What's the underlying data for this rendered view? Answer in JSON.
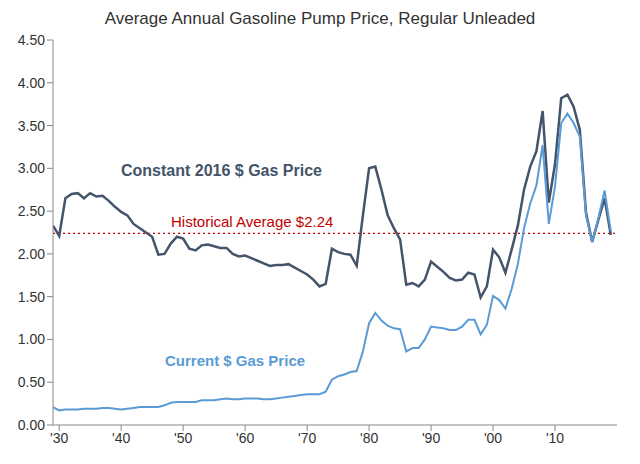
{
  "chart_data": {
    "type": "line",
    "title": "Average Annual Gasoline Pump Price, Regular Unleaded",
    "x": [
      1929,
      1930,
      1931,
      1932,
      1933,
      1934,
      1935,
      1936,
      1937,
      1938,
      1939,
      1940,
      1941,
      1942,
      1943,
      1944,
      1945,
      1946,
      1947,
      1948,
      1949,
      1950,
      1951,
      1952,
      1953,
      1954,
      1955,
      1956,
      1957,
      1958,
      1959,
      1960,
      1961,
      1962,
      1963,
      1964,
      1965,
      1966,
      1967,
      1968,
      1969,
      1970,
      1971,
      1972,
      1973,
      1974,
      1975,
      1976,
      1977,
      1978,
      1979,
      1980,
      1981,
      1982,
      1983,
      1984,
      1985,
      1986,
      1987,
      1988,
      1989,
      1990,
      1991,
      1992,
      1993,
      1994,
      1995,
      1996,
      1997,
      1998,
      1999,
      2000,
      2001,
      2002,
      2003,
      2004,
      2005,
      2006,
      2007,
      2008,
      2009,
      2010,
      2011,
      2012,
      2013,
      2014,
      2015,
      2016,
      2017,
      2018,
      2019
    ],
    "series": [
      {
        "name": "Constant 2016 $ Gas Price",
        "color": "#44546a",
        "values": [
          2.33,
          2.21,
          2.65,
          2.7,
          2.71,
          2.65,
          2.71,
          2.67,
          2.68,
          2.62,
          2.55,
          2.49,
          2.45,
          2.35,
          2.3,
          2.25,
          2.2,
          1.99,
          2.0,
          2.12,
          2.2,
          2.18,
          2.06,
          2.04,
          2.1,
          2.11,
          2.09,
          2.07,
          2.07,
          2.0,
          1.97,
          1.98,
          1.95,
          1.92,
          1.89,
          1.86,
          1.87,
          1.87,
          1.88,
          1.84,
          1.8,
          1.76,
          1.7,
          1.62,
          1.65,
          2.06,
          2.02,
          2.0,
          1.99,
          1.86,
          2.45,
          3.0,
          3.02,
          2.75,
          2.45,
          2.3,
          2.17,
          1.64,
          1.66,
          1.62,
          1.7,
          1.91,
          1.85,
          1.79,
          1.72,
          1.69,
          1.7,
          1.78,
          1.76,
          1.49,
          1.62,
          2.05,
          1.96,
          1.78,
          2.05,
          2.33,
          2.75,
          3.02,
          3.2,
          3.67,
          2.6,
          3.05,
          3.82,
          3.86,
          3.72,
          3.45,
          2.48,
          2.14,
          2.4,
          2.65,
          2.22
        ]
      },
      {
        "name": "Current $ Gas Price",
        "color": "#5b9bd5",
        "values": [
          0.21,
          0.17,
          0.18,
          0.18,
          0.18,
          0.19,
          0.19,
          0.19,
          0.2,
          0.2,
          0.19,
          0.18,
          0.19,
          0.2,
          0.21,
          0.21,
          0.21,
          0.21,
          0.23,
          0.26,
          0.27,
          0.27,
          0.27,
          0.27,
          0.29,
          0.29,
          0.29,
          0.3,
          0.31,
          0.3,
          0.3,
          0.31,
          0.31,
          0.31,
          0.3,
          0.3,
          0.31,
          0.32,
          0.33,
          0.34,
          0.35,
          0.36,
          0.36,
          0.36,
          0.39,
          0.53,
          0.57,
          0.59,
          0.62,
          0.63,
          0.86,
          1.19,
          1.31,
          1.22,
          1.16,
          1.13,
          1.12,
          0.86,
          0.9,
          0.9,
          1.0,
          1.15,
          1.14,
          1.13,
          1.11,
          1.11,
          1.15,
          1.23,
          1.23,
          1.06,
          1.17,
          1.51,
          1.46,
          1.36,
          1.59,
          1.88,
          2.3,
          2.59,
          2.8,
          3.27,
          2.35,
          2.79,
          3.53,
          3.64,
          3.53,
          3.37,
          2.45,
          2.14,
          2.42,
          2.74,
          2.27
        ]
      }
    ],
    "xlim": [
      1929,
      2020
    ],
    "xticks": [
      {
        "value": 1930,
        "label": "'30"
      },
      {
        "value": 1940,
        "label": "'40"
      },
      {
        "value": 1950,
        "label": "'50"
      },
      {
        "value": 1960,
        "label": "'60"
      },
      {
        "value": 1970,
        "label": "'70"
      },
      {
        "value": 1980,
        "label": "'80"
      },
      {
        "value": 1990,
        "label": "'90"
      },
      {
        "value": 2000,
        "label": "'00"
      },
      {
        "value": 2010,
        "label": "'10"
      }
    ],
    "ylim": [
      0,
      4.5
    ],
    "yticks": [
      {
        "value": 0,
        "label": "0.00"
      },
      {
        "value": 0.5,
        "label": "0.50"
      },
      {
        "value": 1,
        "label": "1.00"
      },
      {
        "value": 1.5,
        "label": "1.50"
      },
      {
        "value": 2,
        "label": "2.00"
      },
      {
        "value": 2.5,
        "label": "2.50"
      },
      {
        "value": 3,
        "label": "3.00"
      },
      {
        "value": 3.5,
        "label": "3.50"
      },
      {
        "value": 4,
        "label": "4.00"
      },
      {
        "value": 4.5,
        "label": "4.50"
      }
    ],
    "grid": false,
    "reference_lines": [
      {
        "label": "Historical Average $2.24",
        "value": 2.24,
        "color": "#c00000",
        "line_style": "dotted"
      }
    ]
  }
}
